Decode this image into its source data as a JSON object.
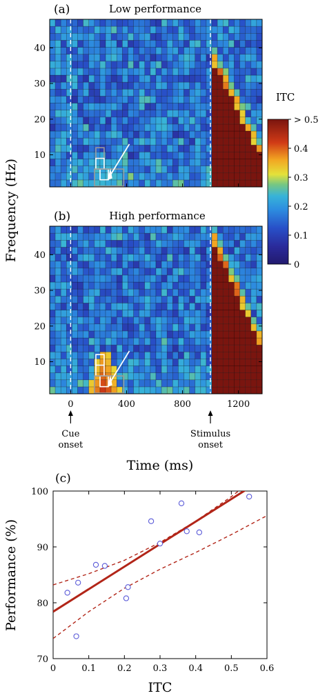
{
  "chart_data": [
    {
      "type": "heatmap",
      "panel_label": "(a)",
      "title": "Low performance",
      "ylabel": "Frequency (Hz)",
      "xlabel": "Time (ms)",
      "xlim": [
        -150,
        1370
      ],
      "ylim": [
        1,
        48
      ],
      "xticks": [
        0,
        400,
        800,
        1200
      ],
      "yticks": [
        10,
        20,
        30,
        40
      ],
      "grid": {
        "cols": 38,
        "rows": 24
      },
      "event_lines": [
        0,
        1000
      ]
    },
    {
      "type": "heatmap",
      "panel_label": "(b)",
      "title": "High performance",
      "ylabel": "Frequency (Hz)",
      "xlabel": "Time (ms)",
      "xlim": [
        -150,
        1370
      ],
      "ylim": [
        1,
        48
      ],
      "xticks": [
        0,
        400,
        800,
        1200
      ],
      "xtick_labels": [
        "0",
        "400",
        "800",
        "1200"
      ],
      "yticks": [
        10,
        20,
        30,
        40
      ],
      "grid": {
        "cols": 38,
        "rows": 24
      },
      "event_lines": [
        0,
        1000
      ],
      "annotations": [
        {
          "x": 0,
          "lines": [
            "Cue",
            "onset"
          ]
        },
        {
          "x": 1000,
          "lines": [
            "Stimulus",
            "onset"
          ]
        }
      ]
    },
    {
      "type": "scatter",
      "panel_label": "(c)",
      "xlabel": "ITC",
      "ylabel": "Performance (%)",
      "xlim": [
        0,
        0.6
      ],
      "ylim": [
        70,
        100
      ],
      "xticks": [
        0,
        0.1,
        0.2,
        0.3,
        0.4,
        0.5,
        0.6
      ],
      "yticks": [
        70,
        80,
        90,
        100
      ],
      "points": [
        {
          "x": 0.04,
          "y": 81.8
        },
        {
          "x": 0.065,
          "y": 74.0
        },
        {
          "x": 0.07,
          "y": 83.6
        },
        {
          "x": 0.12,
          "y": 86.8
        },
        {
          "x": 0.145,
          "y": 86.6
        },
        {
          "x": 0.205,
          "y": 80.8
        },
        {
          "x": 0.21,
          "y": 82.8
        },
        {
          "x": 0.275,
          "y": 94.6
        },
        {
          "x": 0.3,
          "y": 90.6
        },
        {
          "x": 0.36,
          "y": 97.8
        },
        {
          "x": 0.375,
          "y": 92.8
        },
        {
          "x": 0.41,
          "y": 92.6
        },
        {
          "x": 0.55,
          "y": 99.0
        }
      ],
      "fit_line": {
        "x": [
          0,
          0.6
        ],
        "y": [
          78.4,
          102.6
        ]
      },
      "ci_upper": {
        "x": [
          0,
          0.1,
          0.2,
          0.3,
          0.4,
          0.5,
          0.6
        ],
        "y": [
          83.2,
          85.2,
          87.6,
          90.8,
          94.6,
          99.0,
          104.0
        ]
      },
      "ci_lower": {
        "x": [
          0,
          0.1,
          0.2,
          0.3,
          0.4,
          0.5,
          0.6
        ],
        "y": [
          73.6,
          78.4,
          82.6,
          86.0,
          89.0,
          92.2,
          95.6
        ]
      },
      "colors": {
        "fit": "#b22518",
        "ci": "#b22518",
        "marker": "#5a5ad8"
      }
    }
  ],
  "colorbar": {
    "label": "ITC",
    "ticks": [
      {
        "value": 0,
        "label": "0"
      },
      {
        "value": 0.1,
        "label": "0.1"
      },
      {
        "value": 0.2,
        "label": "0.2"
      },
      {
        "value": 0.3,
        "label": "0.3"
      },
      {
        "value": 0.4,
        "label": "0.4"
      },
      {
        "value": 0.5,
        "label": "> 0.5"
      }
    ],
    "range": [
      0,
      0.5
    ]
  }
}
